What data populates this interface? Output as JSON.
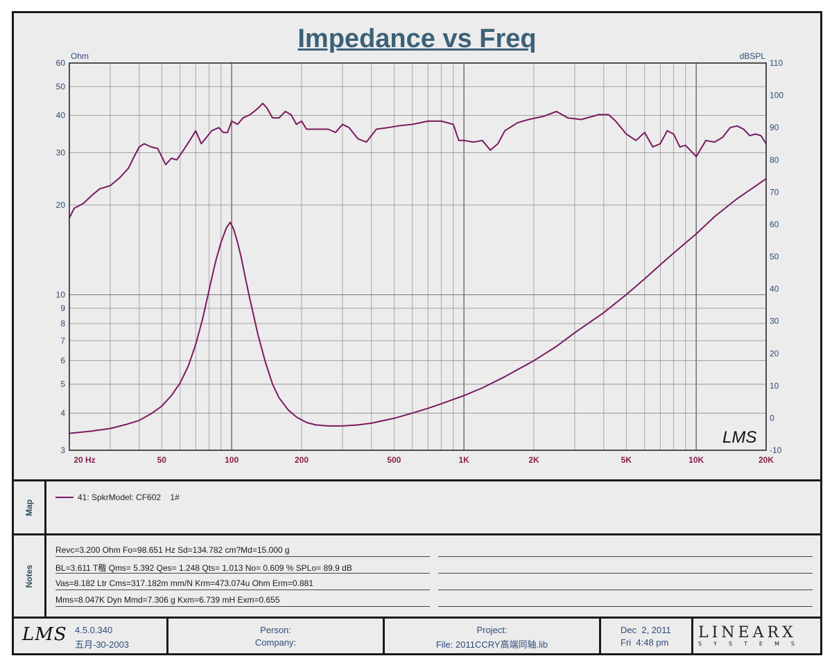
{
  "chart_data": {
    "type": "line",
    "title": "Impedance vs Freq",
    "x_scale": "log",
    "xlim": [
      20,
      20000
    ],
    "x_ticks": [
      20,
      50,
      100,
      200,
      500,
      1000,
      2000,
      5000,
      10000,
      20000
    ],
    "x_tick_labels": [
      "20  Hz",
      "50",
      "100",
      "200",
      "500",
      "1K",
      "2K",
      "5K",
      "10K",
      "20K"
    ],
    "left_axis": {
      "label": "Ohm",
      "scale": "log",
      "ylim": [
        3,
        60
      ],
      "ticks": [
        3,
        4,
        5,
        6,
        7,
        8,
        9,
        10,
        20,
        30,
        40,
        50,
        60
      ],
      "tick_labels": [
        "3",
        "4",
        "5",
        "6",
        "7",
        "8",
        "9",
        "10",
        "20",
        "30",
        "40",
        "50",
        "60"
      ]
    },
    "right_axis": {
      "label": "dBSPL",
      "scale": "linear",
      "ylim": [
        -10,
        110
      ],
      "ticks": [
        -10,
        0,
        10,
        20,
        30,
        40,
        50,
        60,
        70,
        80,
        90,
        100,
        110
      ],
      "tick_labels": [
        "-10",
        "0",
        "10",
        "20",
        "30",
        "40",
        "50",
        "60",
        "70",
        "80",
        "90",
        "100",
        "110"
      ]
    },
    "grid": true,
    "series": [
      {
        "name": "Impedance (Ohm)",
        "axis": "left",
        "color": "#7a1a5e",
        "points": [
          [
            20,
            3.42
          ],
          [
            25,
            3.48
          ],
          [
            30,
            3.55
          ],
          [
            35,
            3.66
          ],
          [
            40,
            3.78
          ],
          [
            45,
            3.98
          ],
          [
            50,
            4.22
          ],
          [
            55,
            4.58
          ],
          [
            60,
            5.05
          ],
          [
            65,
            5.75
          ],
          [
            70,
            6.8
          ],
          [
            75,
            8.3
          ],
          [
            80,
            10.4
          ],
          [
            85,
            12.8
          ],
          [
            90,
            15.0
          ],
          [
            95,
            16.8
          ],
          [
            98.6,
            17.5
          ],
          [
            102,
            16.6
          ],
          [
            106,
            15.0
          ],
          [
            110,
            13.3
          ],
          [
            115,
            11.2
          ],
          [
            120,
            9.6
          ],
          [
            130,
            7.3
          ],
          [
            140,
            5.9
          ],
          [
            150,
            5.0
          ],
          [
            160,
            4.5
          ],
          [
            175,
            4.1
          ],
          [
            190,
            3.88
          ],
          [
            210,
            3.72
          ],
          [
            230,
            3.65
          ],
          [
            260,
            3.62
          ],
          [
            300,
            3.62
          ],
          [
            350,
            3.65
          ],
          [
            400,
            3.7
          ],
          [
            500,
            3.84
          ],
          [
            600,
            4.0
          ],
          [
            700,
            4.15
          ],
          [
            800,
            4.3
          ],
          [
            1000,
            4.58
          ],
          [
            1200,
            4.86
          ],
          [
            1500,
            5.3
          ],
          [
            2000,
            6.0
          ],
          [
            2500,
            6.7
          ],
          [
            3000,
            7.45
          ],
          [
            4000,
            8.7
          ],
          [
            5000,
            10.0
          ],
          [
            6000,
            11.3
          ],
          [
            7000,
            12.6
          ],
          [
            8000,
            13.8
          ],
          [
            10000,
            16.0
          ],
          [
            12000,
            18.3
          ],
          [
            15000,
            21.0
          ],
          [
            20000,
            24.5
          ]
        ]
      },
      {
        "name": "SPL (dBSPL)",
        "axis": "right",
        "color": "#7a1a5e",
        "points": [
          [
            20,
            62
          ],
          [
            21,
            65
          ],
          [
            23,
            66.5
          ],
          [
            25,
            69
          ],
          [
            27,
            71
          ],
          [
            30,
            72
          ],
          [
            33,
            74.5
          ],
          [
            36,
            77.5
          ],
          [
            38,
            81
          ],
          [
            40,
            84
          ],
          [
            42,
            85
          ],
          [
            45,
            84
          ],
          [
            48,
            83.5
          ],
          [
            50,
            81
          ],
          [
            52,
            78.5
          ],
          [
            55,
            80.5
          ],
          [
            58,
            80
          ],
          [
            62,
            83
          ],
          [
            66,
            86
          ],
          [
            70,
            89
          ],
          [
            74,
            85
          ],
          [
            78,
            87
          ],
          [
            82,
            89
          ],
          [
            88,
            90
          ],
          [
            92,
            88.5
          ],
          [
            96,
            88.5
          ],
          [
            100,
            92
          ],
          [
            106,
            91
          ],
          [
            112,
            93
          ],
          [
            120,
            94
          ],
          [
            130,
            96
          ],
          [
            136,
            97.5
          ],
          [
            142,
            96
          ],
          [
            150,
            93
          ],
          [
            160,
            93
          ],
          [
            170,
            95
          ],
          [
            180,
            94
          ],
          [
            190,
            91
          ],
          [
            200,
            92
          ],
          [
            210,
            89.5
          ],
          [
            230,
            89.5
          ],
          [
            260,
            89.5
          ],
          [
            280,
            88.5
          ],
          [
            300,
            91
          ],
          [
            320,
            90
          ],
          [
            350,
            86.5
          ],
          [
            380,
            85.5
          ],
          [
            420,
            89.5
          ],
          [
            470,
            90
          ],
          [
            520,
            90.5
          ],
          [
            600,
            91
          ],
          [
            700,
            92
          ],
          [
            800,
            92
          ],
          [
            900,
            91
          ],
          [
            950,
            86
          ],
          [
            1000,
            86
          ],
          [
            1100,
            85.5
          ],
          [
            1200,
            86
          ],
          [
            1300,
            83
          ],
          [
            1400,
            85
          ],
          [
            1500,
            89
          ],
          [
            1700,
            91.5
          ],
          [
            1900,
            92.5
          ],
          [
            2200,
            93.5
          ],
          [
            2500,
            95
          ],
          [
            2800,
            93
          ],
          [
            3200,
            92.5
          ],
          [
            3800,
            94
          ],
          [
            4200,
            94
          ],
          [
            4500,
            92
          ],
          [
            5000,
            88
          ],
          [
            5500,
            86
          ],
          [
            6000,
            88.5
          ],
          [
            6500,
            84
          ],
          [
            7000,
            85
          ],
          [
            7500,
            89
          ],
          [
            8000,
            88
          ],
          [
            8500,
            84
          ],
          [
            9000,
            84.5
          ],
          [
            10000,
            81
          ],
          [
            11000,
            86
          ],
          [
            12000,
            85.5
          ],
          [
            13000,
            87
          ],
          [
            14000,
            90
          ],
          [
            15000,
            90.5
          ],
          [
            16000,
            89.5
          ],
          [
            17000,
            87.5
          ],
          [
            18000,
            88
          ],
          [
            19000,
            87.5
          ],
          [
            20000,
            85
          ]
        ]
      }
    ]
  },
  "lms_mark": "LMS",
  "map": {
    "label": "Map",
    "legend_entry": "41: SpkrModel: CF602    1#"
  },
  "notes": {
    "label": "Notes",
    "lines": [
      "Revc=3.200 Ohm  Fo=98.651 Hz  Sd=134.782 cm?Md=15.000 g",
      "BL=3.611 T稭  Qms= 5.392  Qes= 1.248  Qts= 1.013  No= 0.609 %  SPLo= 89.9 dB",
      "Vas=8.182 Ltr  Cms=317.182m mm/N  Krm=473.074u Ohm  Erm=0.881",
      "Mms=8.047K Dyn  Mmd=7.306 g  Kxm=6.739 mH  Exm=0.655"
    ]
  },
  "footer": {
    "logo": "LMS",
    "version": "4.5.0.340",
    "build_date": "五月-30-2003",
    "person_label": "Person:",
    "company_label": "Company:",
    "project_label": "Project:",
    "file_label": "File: 2011CCRY高端同轴.lib",
    "date": "Dec  2, 2011",
    "time": "Fri  4:48 pm",
    "brand_big": "LINEARX",
    "brand_small": "SYSTEMS"
  }
}
